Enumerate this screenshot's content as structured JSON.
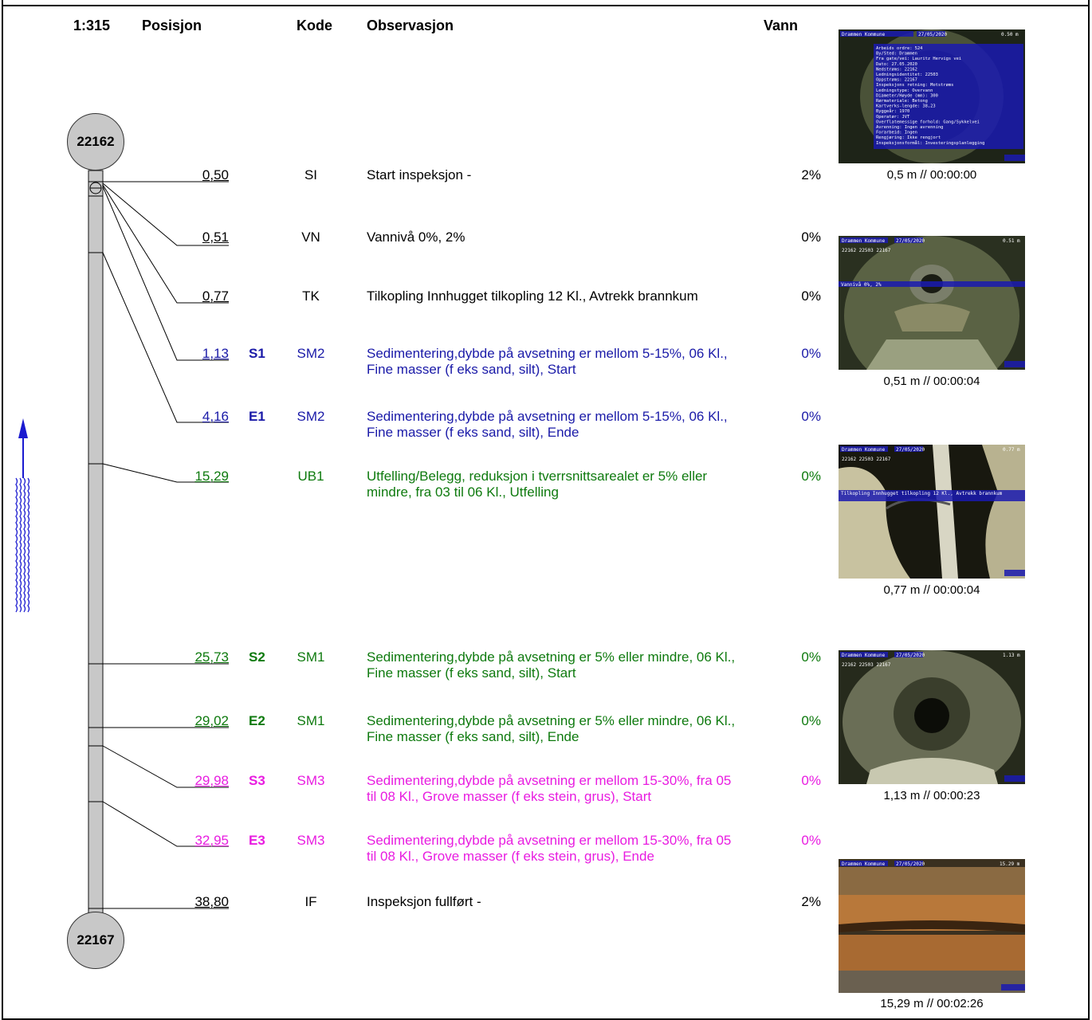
{
  "header": {
    "scale": "1:315",
    "position": "Posisjon",
    "code": "Kode",
    "observation": "Observasjon",
    "water": "Vann"
  },
  "nodes": {
    "top": "22162",
    "bottom": "22167"
  },
  "rows": [
    {
      "pos": "0,50",
      "mark": "",
      "code": "SI",
      "obs": "Start inspeksjon -",
      "water": "2%"
    },
    {
      "pos": "0,51",
      "mark": "",
      "code": "VN",
      "obs": "Vannivå 0%, 2%",
      "water": "0%"
    },
    {
      "pos": "0,77",
      "mark": "",
      "code": "TK",
      "obs": "Tilkopling Innhugget tilkopling  12 Kl., Avtrekk brannkum",
      "water": "0%"
    },
    {
      "pos": "1,13",
      "mark": "S1",
      "code": "SM2",
      "obs": "Sedimentering,dybde på avsetning er mellom 5-15%,  06 Kl., Fine masser (f eks sand, silt), Start",
      "water": "0%"
    },
    {
      "pos": "4,16",
      "mark": "E1",
      "code": "SM2",
      "obs": "Sedimentering,dybde på avsetning er mellom 5-15%,  06 Kl., Fine masser (f eks sand, silt), Ende",
      "water": "0%"
    },
    {
      "pos": "15,29",
      "mark": "",
      "code": "UB1",
      "obs": "Utfelling/Belegg, reduksjon i tverrsnittsarealet er 5% eller mindre, fra 03 til 06 Kl., Utfelling",
      "water": "0%"
    },
    {
      "pos": "25,73",
      "mark": "S2",
      "code": "SM1",
      "obs": "Sedimentering,dybde på avsetning er 5% eller mindre,  06 Kl., Fine masser (f eks sand, silt), Start",
      "water": "0%"
    },
    {
      "pos": "29,02",
      "mark": "E2",
      "code": "SM1",
      "obs": "Sedimentering,dybde på avsetning er 5% eller mindre,  06 Kl., Fine masser (f eks sand, silt), Ende",
      "water": "0%"
    },
    {
      "pos": "29,98",
      "mark": "S3",
      "code": "SM3",
      "obs": "Sedimentering,dybde på avsetning er mellom 15-30%, fra 05 til 08 Kl., Grove masser (f eks stein, grus), Start",
      "water": "0%"
    },
    {
      "pos": "32,95",
      "mark": "E3",
      "code": "SM3",
      "obs": "Sedimentering,dybde på avsetning er mellom 15-30%, fra 05 til 08 Kl., Grove masser (f eks stein, grus), Ende",
      "water": "0%"
    },
    {
      "pos": "38,80",
      "mark": "",
      "code": "IF",
      "obs": "Inspeksjon fullført -",
      "water": "2%"
    }
  ],
  "photos": [
    {
      "caption": "0,5 m // 00:00:00",
      "overlay_title": "Drammen Kommune",
      "overlay_date": "27/05/2020",
      "overlay_dist": "0.50 m",
      "info_lines": [
        "Arbeids ordre:      524",
        "By/Sted:            Drammen",
        "Fra gate/vei:       Lauritz Hervigs vei",
        "Dato:               27.05.2020",
        "Nedstrøms:          22162",
        "Ledningsidentitet:  22503",
        "Oppstrøms:          22167",
        "Inspeksjons retning: Motstrøms",
        "Ledningstype:       Overvann",
        "Diameter/Høyde (mm): 300",
        "Rørmateriale:       Betong",
        "Kartverks-lengde:   38,23",
        "Byggeår:            1970",
        "Operatør:           JVT",
        "Overflatemessige forhold: Gang/Sykkelvei",
        "Avrenning:          Ingen avrenning",
        "Forarbeid:          Ingen",
        "Rengjøring:         Ikke rengjort",
        "Inspeksjonsformål:  Investeringsplanlegging"
      ]
    },
    {
      "caption": "0,51 m // 00:00:04",
      "overlay_title": "Drammen Kommune",
      "overlay_date": "27/05/2020",
      "overlay_dist": "0.51 m",
      "overlay_ids": "22162 22503 22167",
      "overlay_obs": "Vannivå 0%, 2%"
    },
    {
      "caption": "0,77 m // 00:00:04",
      "overlay_title": "Drammen Kommune",
      "overlay_date": "27/05/2020",
      "overlay_dist": "0.77 m",
      "overlay_ids": "22162 22503 22167",
      "overlay_obs": "Tilkopling Innhugget tilkopling  12 Kl., Avtrekk brannkum"
    },
    {
      "caption": "1,13 m // 00:00:23",
      "overlay_title": "Drammen Kommune",
      "overlay_date": "27/05/2020",
      "overlay_dist": "1.13 m",
      "overlay_ids": "22162 22503 22167"
    },
    {
      "caption": "15,29 m // 00:02:26",
      "overlay_title": "Drammen Kommune",
      "overlay_date": "27/05/2020",
      "overlay_dist": "15.29 m"
    }
  ],
  "colors": {
    "black": "#000000",
    "blue": "#1a1aa8",
    "green": "#0e7a0e",
    "pink": "#e81ce0",
    "pipe": "#c8c8c8",
    "flow_arrow": "#1a1ad0"
  }
}
